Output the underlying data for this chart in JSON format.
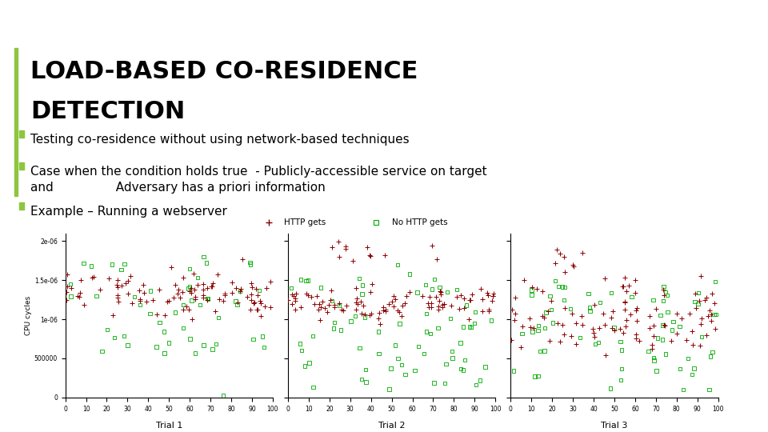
{
  "title_line1": "LOAD-BASED CO-RESIDENCE",
  "title_line2": "DETECTION",
  "accent_color": "#8dc63f",
  "title_color": "#000000",
  "bullet_color": "#8dc63f",
  "bullet_points": [
    "Testing co-residence without using network-based techniques",
    "Case when the condition holds true  - Publicly-accessible service on target\nand                Adversary has a priori information",
    "Example – Running a webserver"
  ],
  "subplot_titles": [
    "Trial 1",
    "Trial 2",
    "Trial 3"
  ],
  "legend_label1": "HTTP gets",
  "legend_label2": "No HTTP gets",
  "http_color": "#8b0000",
  "no_http_color": "#00aa00",
  "ylabel": "CPU cycles",
  "seed": 42,
  "title_fontsize": 22,
  "bullet_fontsize": 11,
  "bg_color": "#ffffff"
}
